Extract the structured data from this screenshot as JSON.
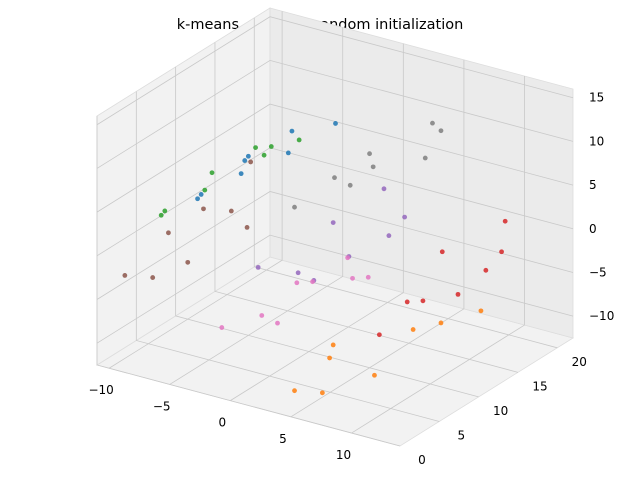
{
  "chart_data": {
    "type": "scatter",
    "projection": "3d",
    "title": "k-means - uniform random initialization",
    "xlabel": "",
    "ylabel": "",
    "zlabel": "",
    "grid": true,
    "legend": "none",
    "xlim": [
      -11,
      14
    ],
    "ylim": [
      0,
      22
    ],
    "zlim": [
      -12.5,
      16
    ],
    "x_ticks": [
      "−10",
      "−5",
      "0",
      "5",
      "10"
    ],
    "y_ticks": [
      "0",
      "5",
      "10",
      "15",
      "20"
    ],
    "z_ticks": [
      "−10",
      "−5",
      "0",
      "5",
      "10",
      "15"
    ],
    "x_tick_values": [
      -10,
      -5,
      0,
      5,
      10
    ],
    "y_tick_values": [
      0,
      5,
      10,
      15,
      20
    ],
    "z_tick_values": [
      -10,
      -5,
      0,
      5,
      10,
      15
    ],
    "shape": "swiss-roll",
    "n_clusters": 8,
    "series": [
      {
        "color": "#1f77b4",
        "points": [
          [
            -4,
            2,
            8
          ],
          [
            -3,
            6,
            9
          ],
          [
            -5,
            10,
            8
          ],
          [
            -4,
            14,
            9
          ],
          [
            -3,
            18,
            8
          ],
          [
            -5,
            4,
            7
          ],
          [
            -4,
            8,
            9
          ],
          [
            -3,
            12,
            8
          ]
        ]
      },
      {
        "color": "#ff7f0e",
        "points": [
          [
            4,
            2,
            -11
          ],
          [
            8,
            6,
            -10
          ],
          [
            2,
            10,
            -11
          ],
          [
            6,
            14,
            -10
          ],
          [
            9,
            18,
            -9
          ],
          [
            5,
            4,
            -12
          ],
          [
            3,
            8,
            -11
          ],
          [
            7,
            16,
            -10
          ]
        ]
      },
      {
        "color": "#2ca02c",
        "points": [
          [
            -7,
            2,
            5
          ],
          [
            -6,
            6,
            6
          ],
          [
            -8,
            10,
            5
          ],
          [
            -7,
            14,
            6
          ],
          [
            -6,
            18,
            5
          ],
          [
            -8,
            4,
            4
          ],
          [
            -5,
            12,
            7
          ],
          [
            -7,
            16,
            5
          ]
        ]
      },
      {
        "color": "#d62728",
        "points": [
          [
            11,
            2,
            -2
          ],
          [
            12,
            6,
            0
          ],
          [
            11,
            10,
            3
          ],
          [
            12,
            14,
            -1
          ],
          [
            11,
            18,
            2
          ],
          [
            12,
            4,
            1
          ],
          [
            11,
            12,
            -3
          ],
          [
            12,
            16,
            0
          ]
        ]
      },
      {
        "color": "#9467bd",
        "points": [
          [
            1,
            2,
            2
          ],
          [
            3,
            6,
            -1
          ],
          [
            2,
            10,
            3
          ],
          [
            4,
            14,
            0
          ],
          [
            1,
            18,
            2
          ],
          [
            3,
            4,
            1
          ],
          [
            2,
            12,
            -2
          ],
          [
            4,
            16,
            1
          ]
        ]
      },
      {
        "color": "#8c564b",
        "points": [
          [
            -10,
            2,
            -3
          ],
          [
            -9,
            6,
            0
          ],
          [
            -10,
            10,
            -6
          ],
          [
            -9,
            14,
            -2
          ],
          [
            -10,
            18,
            1
          ],
          [
            -9,
            4,
            -4
          ],
          [
            -10,
            12,
            -1
          ],
          [
            -9,
            16,
            -5
          ]
        ]
      },
      {
        "color": "#e377c2",
        "points": [
          [
            -2,
            2,
            -6
          ],
          [
            0,
            6,
            -7
          ],
          [
            -1,
            10,
            -5
          ],
          [
            1,
            14,
            -6
          ],
          [
            -2,
            18,
            -7
          ],
          [
            0,
            4,
            -5
          ],
          [
            -1,
            12,
            -6
          ],
          [
            1,
            16,
            -7
          ]
        ]
      },
      {
        "color": "#7f7f7f",
        "points": [
          [
            4,
            2,
            10
          ],
          [
            6,
            6,
            11
          ],
          [
            5,
            10,
            12
          ],
          [
            7,
            14,
            10
          ],
          [
            5,
            18,
            11
          ],
          [
            6,
            4,
            13
          ],
          [
            4,
            12,
            9
          ],
          [
            7,
            16,
            12
          ]
        ]
      }
    ]
  }
}
